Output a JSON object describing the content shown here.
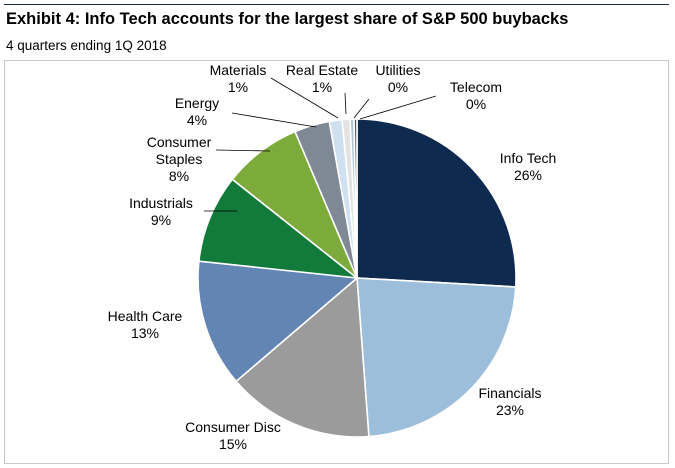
{
  "header": {
    "title": "Exhibit 4: Info Tech accounts for the largest share of S&P 500 buybacks",
    "subtitle": "4 quarters ending 1Q 2018"
  },
  "chart_data": {
    "type": "pie",
    "title": "Exhibit 4: Info Tech accounts for the largest share of S&P 500 buybacks",
    "subtitle": "4 quarters ending 1Q 2018",
    "start": "12 o'clock",
    "direction": "clockwise",
    "slices": [
      {
        "name": "Info Tech",
        "label_lines": [
          "Info Tech"
        ],
        "value_label": "26%",
        "value": 26.0,
        "color": "#0f2a4f"
      },
      {
        "name": "Financials",
        "label_lines": [
          "Financials"
        ],
        "value_label": "23%",
        "value": 23.0,
        "color": "#9dbedb"
      },
      {
        "name": "Consumer Disc",
        "label_lines": [
          "Consumer Disc"
        ],
        "value_label": "15%",
        "value": 15.0,
        "color": "#9b9b9b"
      },
      {
        "name": "Health Care",
        "label_lines": [
          "Health Care"
        ],
        "value_label": "13%",
        "value": 13.0,
        "color": "#6285b3"
      },
      {
        "name": "Industrials",
        "label_lines": [
          "Industrials"
        ],
        "value_label": "9%",
        "value": 9.0,
        "color": "#127a3a"
      },
      {
        "name": "Consumer Staples",
        "label_lines": [
          "Consumer",
          "Staples"
        ],
        "value_label": "8%",
        "value": 8.0,
        "color": "#7cab3b"
      },
      {
        "name": "Energy",
        "label_lines": [
          "Energy"
        ],
        "value_label": "4%",
        "value": 3.6,
        "color": "#7f8895"
      },
      {
        "name": "Materials",
        "label_lines": [
          "Materials"
        ],
        "value_label": "1%",
        "value": 1.3,
        "color": "#cfe0f0"
      },
      {
        "name": "Real Estate",
        "label_lines": [
          "Real Estate"
        ],
        "value_label": "1%",
        "value": 0.8,
        "color": "#e3e3e3"
      },
      {
        "name": "Utilities",
        "label_lines": [
          "Utilities"
        ],
        "value_label": "0%",
        "value": 0.4,
        "color": "#b4c4d4"
      },
      {
        "name": "Telecom",
        "label_lines": [
          "Telecom"
        ],
        "value_label": "0%",
        "value": 0.3,
        "color": "#5a5a5a"
      }
    ]
  }
}
